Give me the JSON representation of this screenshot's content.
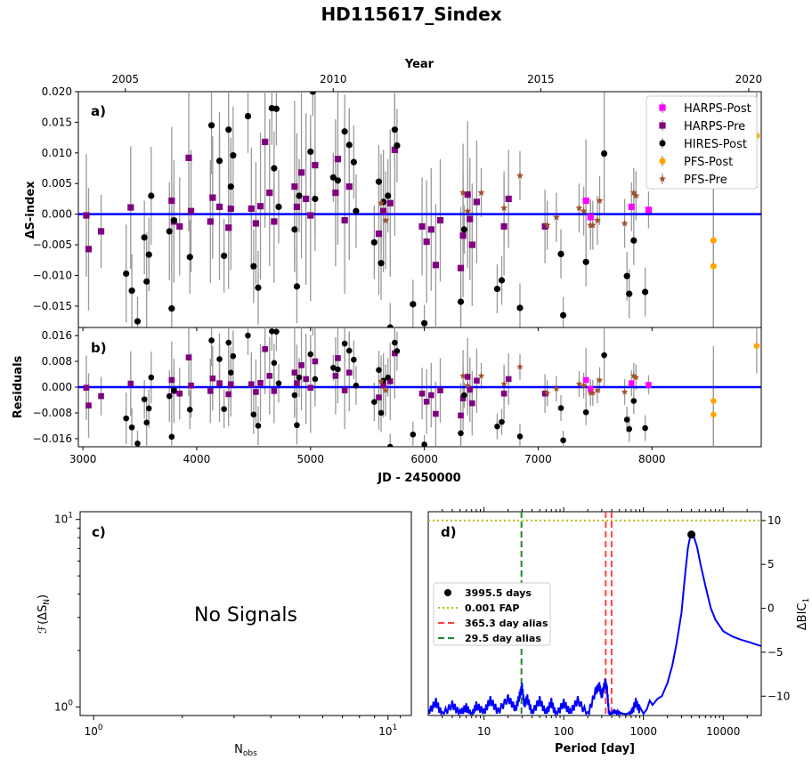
{
  "figure": {
    "title": "HD115617_Sindex"
  },
  "chart_data": [
    {
      "id": "a",
      "type": "scatter",
      "panel_label": "a)",
      "xlabel": "",
      "ylabel": "ΔS-index",
      "top_xlabel": "Year",
      "top_ticks": [
        {
          "year": 2005,
          "jd": 3373
        },
        {
          "year": 2010,
          "jd": 5199
        },
        {
          "year": 2015,
          "jd": 7023
        },
        {
          "year": 2020,
          "jd": 8850
        }
      ],
      "xlim": [
        2960,
        8960
      ],
      "ylim": [
        -0.0185,
        0.02
      ],
      "yticks": [
        -0.015,
        -0.01,
        -0.005,
        0.0,
        0.005,
        0.01,
        0.015,
        0.02
      ],
      "ytick_labels": [
        "−0.015",
        "−0.010",
        "−0.005",
        "0.000",
        "0.005",
        "0.010",
        "0.015",
        "0.020"
      ],
      "model_value": 0.0,
      "legend": {
        "position": "top-right",
        "entries": [
          "HARPS-Post",
          "HARPS-Pre",
          "HIRES-Post",
          "PFS-Post",
          "PFS-Pre"
        ]
      },
      "series": [
        {
          "name": "HARPS-Post",
          "marker": "square",
          "color": "#ff00ff",
          "x": [
            7420,
            7460,
            7820,
            7970
          ],
          "y": [
            0.0022,
            -0.0005,
            0.0012,
            0.0007
          ],
          "err": [
            0.01,
            0.003,
            0.004,
            0.003
          ]
        },
        {
          "name": "HARPS-Pre",
          "marker": "square",
          "color": "#800080",
          "x": [
            3030,
            3050,
            3160,
            3420,
            3780,
            3800,
            3850,
            3930,
            3950,
            4120,
            4140,
            4200,
            4280,
            4300,
            4480,
            4520,
            4560,
            4600,
            4640,
            4680,
            4860,
            4880,
            4920,
            4960,
            5000,
            5040,
            5220,
            5240,
            5300,
            5340,
            5600,
            5640,
            5700,
            5740,
            5980,
            6020,
            6060,
            6100,
            6140,
            6320,
            6340,
            6380,
            6400,
            6420,
            6460,
            6700,
            6740,
            7060
          ],
          "y": [
            -0.0002,
            -0.0057,
            -0.0028,
            0.0011,
            0.0022,
            -0.0012,
            -0.002,
            0.0092,
            0.0005,
            -0.0012,
            0.0027,
            0.0012,
            -0.0022,
            0.0009,
            0.0009,
            -0.0015,
            0.0013,
            0.0118,
            0.0035,
            -0.0012,
            0.0045,
            0.0012,
            0.0068,
            0.0025,
            -0.0002,
            0.008,
            0.0035,
            0.009,
            -0.001,
            0.0045,
            -0.0032,
            0.0005,
            0.0018,
            0.0105,
            -0.002,
            -0.0045,
            -0.0025,
            -0.0083,
            -0.001,
            -0.0088,
            -0.0035,
            0.0032,
            -0.0008,
            -0.005,
            0.002,
            -0.002,
            0.0025,
            -0.002
          ],
          "err": [
            0.01,
            0.01,
            0.006,
            0.01,
            0.012,
            0.01,
            0.008,
            0.012,
            0.01,
            0.01,
            0.01,
            0.012,
            0.01,
            0.01,
            0.01,
            0.01,
            0.012,
            0.014,
            0.012,
            0.01,
            0.014,
            0.012,
            0.014,
            0.014,
            0.014,
            0.014,
            0.012,
            0.014,
            0.012,
            0.012,
            0.01,
            0.01,
            0.012,
            0.014,
            0.008,
            0.01,
            0.01,
            0.01,
            0.01,
            0.01,
            0.01,
            0.012,
            0.01,
            0.01,
            0.01,
            0.008,
            0.008,
            0.006
          ]
        },
        {
          "name": "HIRES-Post",
          "marker": "circle",
          "color": "#000000",
          "x": [
            3380,
            3430,
            3480,
            3540,
            3560,
            3580,
            3600,
            3760,
            3780,
            3800,
            3940,
            4130,
            4200,
            4240,
            4280,
            4300,
            4320,
            4450,
            4500,
            4540,
            4660,
            4680,
            4700,
            4720,
            4860,
            4880,
            4900,
            5000,
            5020,
            5040,
            5200,
            5240,
            5300,
            5340,
            5380,
            5400,
            5560,
            5600,
            5620,
            5640,
            5680,
            5700,
            5740,
            5760,
            5900,
            6000,
            6320,
            6350,
            6640,
            6680,
            6840,
            7200,
            7220,
            7420,
            7580,
            7780,
            7800,
            7840,
            7940
          ],
          "y": [
            -0.0097,
            -0.0125,
            -0.0175,
            -0.0038,
            -0.011,
            -0.0066,
            0.003,
            -0.0028,
            -0.0154,
            -0.001,
            -0.007,
            0.0145,
            0.0087,
            -0.0068,
            0.0138,
            0.0045,
            0.0096,
            0.016,
            -0.0085,
            -0.012,
            0.0173,
            0.0075,
            0.0172,
            0.0012,
            -0.0025,
            -0.0118,
            0.003,
            0.0102,
            0.02,
            0.0025,
            0.006,
            0.0055,
            0.0135,
            0.0113,
            0.0085,
            0.0005,
            -0.0046,
            0.0053,
            -0.008,
            0.002,
            0.003,
            -0.0185,
            0.0138,
            0.0112,
            -0.0147,
            -0.0178,
            -0.0143,
            -0.0025,
            -0.0122,
            -0.0108,
            -0.0153,
            -0.0065,
            -0.0165,
            -0.0078,
            0.0099,
            -0.0101,
            -0.013,
            -0.0043,
            -0.0127
          ],
          "err": [
            0.008,
            0.006,
            0.004,
            0.006,
            0.008,
            0.006,
            0.008,
            0.008,
            0.008,
            0.006,
            0.006,
            0.008,
            0.008,
            0.006,
            0.008,
            0.008,
            0.008,
            0.006,
            0.006,
            0.006,
            0.006,
            0.006,
            0.006,
            0.006,
            0.006,
            0.006,
            0.006,
            0.006,
            0.004,
            0.006,
            0.004,
            0.004,
            0.006,
            0.006,
            0.006,
            0.006,
            0.006,
            0.006,
            0.006,
            0.006,
            0.006,
            0.004,
            0.006,
            0.006,
            0.004,
            0.003,
            0.004,
            0.004,
            0.004,
            0.004,
            0.004,
            0.004,
            0.003,
            0.004,
            0.01,
            0.004,
            0.004,
            0.004,
            0.004
          ]
        },
        {
          "name": "PFS-Post",
          "marker": "circle",
          "color": "#ffa500",
          "x": [
            8540,
            8540,
            8920
          ],
          "y": [
            -0.0043,
            -0.0085,
            0.0128
          ],
          "err": [
            0.017,
            0.017,
            0.0085
          ]
        },
        {
          "name": "PFS-Pre",
          "marker": "star",
          "color": "#a0522d",
          "x": [
            5620,
            5660,
            6340,
            6380,
            6500,
            6700,
            6840,
            7080,
            7160,
            7360,
            7400,
            7460,
            7480,
            7520,
            7540,
            7760,
            7840,
            7860
          ],
          "y": [
            0.0018,
            -0.001,
            0.0035,
            0.0005,
            0.0035,
            0.001,
            0.0063,
            -0.0018,
            -0.0005,
            0.001,
            0.0005,
            -0.0018,
            -0.0018,
            -0.001,
            0.0022,
            -0.0015,
            0.0035,
            0.003
          ],
          "err": [
            0.008,
            0.008,
            0.008,
            0.006,
            0.004,
            0.006,
            0.004,
            0.004,
            0.004,
            0.004,
            0.004,
            0.004,
            0.004,
            0.004,
            0.004,
            0.004,
            0.004,
            0.004
          ]
        }
      ]
    },
    {
      "id": "b",
      "type": "scatter",
      "panel_label": "b)",
      "xlabel": "JD - 2450000",
      "ylabel": "Residuals",
      "xlim": [
        2960,
        8960
      ],
      "xticks": [
        3000,
        4000,
        5000,
        6000,
        7000,
        8000
      ],
      "ylim": [
        -0.0185,
        0.0185
      ],
      "yticks": [
        -0.016,
        -0.008,
        0.0,
        0.008,
        0.016
      ],
      "ytick_labels": [
        "−0.016",
        "−0.008",
        "0.000",
        "0.008",
        "0.016"
      ],
      "model_value": 0.0,
      "residuals_note": "residual points mirror panel a) values"
    },
    {
      "id": "c",
      "type": "scatter",
      "panel_label": "c)",
      "xlabel": "N_obs",
      "ylabel": "F(ΔS_N)",
      "xscale": "log",
      "yscale": "log",
      "xlim": [
        0.9,
        12
      ],
      "ylim": [
        0.9,
        11
      ],
      "xtick_labels": [
        "10^0",
        "10^1"
      ],
      "ytick_labels": [
        "10^0",
        "10^1"
      ],
      "annotation": "No Signals"
    },
    {
      "id": "d",
      "type": "line",
      "panel_label": "d)",
      "xlabel": "Period [day]",
      "ylabel": "ΔBIC_1",
      "xscale": "log",
      "xlim": [
        2,
        30000
      ],
      "ylim": [
        -12.2,
        11
      ],
      "xticks": [
        10,
        100,
        1000,
        10000
      ],
      "yticks": [
        -10,
        -5,
        0,
        5,
        10
      ],
      "fap_level": 10,
      "peak": {
        "period": 3995.5,
        "value": 8.4,
        "label": "3995.5 days"
      },
      "aliases": [
        {
          "period": 365.3,
          "offsets": [
            0.92,
            1.09
          ],
          "label": "365.3 day alias",
          "color": "#ff4444"
        },
        {
          "period": 29.5,
          "offsets": [
            1.0
          ],
          "label": "29.5 day alias",
          "color": "#228b22"
        }
      ],
      "legend": {
        "position": "center-left",
        "entries": [
          "3995.5 days",
          "0.001 FAP",
          "365.3 day alias",
          "29.5 day alias"
        ]
      },
      "curve": {
        "name": "periodogram",
        "color": "#0000ff",
        "period": [
          2,
          2.5,
          3,
          4,
          5,
          6,
          7,
          8,
          10,
          12,
          15,
          20,
          25,
          28,
          30,
          32,
          35,
          40,
          50,
          60,
          70,
          80,
          100,
          120,
          150,
          200,
          250,
          280,
          300,
          330,
          350,
          370,
          400,
          430,
          500,
          600,
          700,
          800,
          900,
          1000,
          1100,
          1200,
          1300,
          1500,
          1700,
          2000,
          2300,
          2600,
          3000,
          3300,
          3600,
          3800,
          4000,
          4300,
          4700,
          5200,
          6000,
          7000,
          8000,
          10000,
          13000,
          17000,
          22000,
          30000
        ],
        "value": [
          -11.5,
          -10.2,
          -11.8,
          -10.5,
          -11.6,
          -10.8,
          -11.9,
          -10.6,
          -11.4,
          -10.0,
          -11.3,
          -9.8,
          -11.0,
          -9.5,
          -8.5,
          -10.5,
          -9.8,
          -11.5,
          -10.0,
          -11.6,
          -10.2,
          -11.8,
          -10.3,
          -11.5,
          -10.0,
          -11.8,
          -9.0,
          -8.4,
          -9.5,
          -8.0,
          -8.8,
          -11.8,
          -12.0,
          -11.5,
          -11.8,
          -12.1,
          -11.7,
          -10.2,
          -11.2,
          -12.0,
          -11.5,
          -10.5,
          -11.0,
          -10.3,
          -10.0,
          -8.5,
          -6.5,
          -4.0,
          -0.5,
          3.5,
          6.8,
          7.9,
          8.4,
          8.1,
          7.0,
          5.0,
          2.5,
          0.0,
          -1.3,
          -2.6,
          -3.2,
          -3.6,
          -3.9,
          -4.3
        ]
      }
    }
  ],
  "colors": {
    "model_line": "#0000ff",
    "errorbar": "#999999",
    "fap": "#bbbb00"
  }
}
